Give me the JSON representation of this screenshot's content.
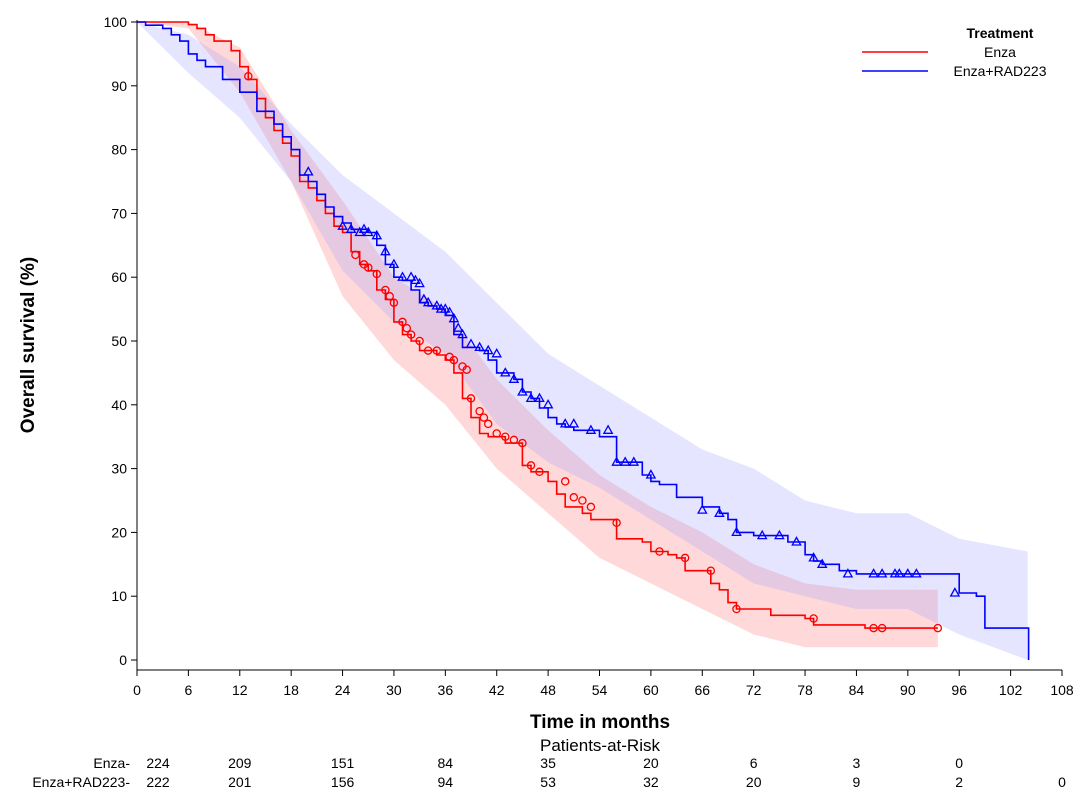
{
  "chart_data": {
    "type": "line",
    "subtype": "kaplan-meier",
    "xlabel": "Time in months",
    "ylabel": "Overall survival (%)",
    "xlim": [
      0,
      108
    ],
    "ylim": [
      0,
      100
    ],
    "xticks": [
      0,
      6,
      12,
      18,
      24,
      30,
      36,
      42,
      48,
      54,
      60,
      66,
      72,
      78,
      84,
      90,
      96,
      102,
      108
    ],
    "yticks": [
      0,
      10,
      20,
      30,
      40,
      50,
      60,
      70,
      80,
      90,
      100
    ],
    "legend": {
      "title": "Treatment",
      "position": "top-right"
    },
    "series": [
      {
        "name": "Enza",
        "color": "#ff0000",
        "band_color": "#ff6666",
        "step": [
          [
            0,
            100
          ],
          [
            5,
            100
          ],
          [
            6,
            99.6
          ],
          [
            7,
            99
          ],
          [
            8,
            98
          ],
          [
            9,
            97
          ],
          [
            11,
            95.5
          ],
          [
            12,
            93
          ],
          [
            13,
            91
          ],
          [
            14,
            88
          ],
          [
            15,
            85
          ],
          [
            16,
            83
          ],
          [
            17,
            81
          ],
          [
            18,
            79
          ],
          [
            19,
            75
          ],
          [
            20,
            74
          ],
          [
            21,
            72
          ],
          [
            22,
            70
          ],
          [
            23,
            68
          ],
          [
            24,
            67
          ],
          [
            25,
            64
          ],
          [
            26,
            62
          ],
          [
            27,
            61
          ],
          [
            28,
            58
          ],
          [
            29,
            56.5
          ],
          [
            30,
            53
          ],
          [
            31,
            51
          ],
          [
            32,
            50
          ],
          [
            33,
            48.5
          ],
          [
            35,
            47.8
          ],
          [
            36,
            47
          ],
          [
            37,
            45
          ],
          [
            38,
            41
          ],
          [
            39,
            38
          ],
          [
            40,
            35.5
          ],
          [
            41,
            35
          ],
          [
            43,
            34
          ],
          [
            45,
            30.5
          ],
          [
            46,
            29.5
          ],
          [
            48,
            28
          ],
          [
            49,
            26
          ],
          [
            50,
            24
          ],
          [
            52,
            23
          ],
          [
            53,
            22
          ],
          [
            54,
            22
          ],
          [
            56,
            19
          ],
          [
            59,
            18.5
          ],
          [
            60,
            17
          ],
          [
            62,
            16.5
          ],
          [
            63,
            16
          ],
          [
            64,
            14
          ],
          [
            67,
            12
          ],
          [
            68,
            11
          ],
          [
            69,
            9
          ],
          [
            70,
            8
          ],
          [
            74,
            7
          ],
          [
            78,
            6.5
          ],
          [
            79,
            5.5
          ],
          [
            84,
            5.5
          ],
          [
            85,
            5
          ],
          [
            93.5,
            5
          ]
        ],
        "ci_upper": [
          [
            0,
            100
          ],
          [
            6,
            100
          ],
          [
            12,
            96
          ],
          [
            18,
            83
          ],
          [
            24,
            72
          ],
          [
            30,
            60
          ],
          [
            36,
            55
          ],
          [
            42,
            44
          ],
          [
            48,
            36
          ],
          [
            54,
            29
          ],
          [
            60,
            24
          ],
          [
            66,
            20
          ],
          [
            72,
            15
          ],
          [
            78,
            12
          ],
          [
            84,
            11
          ],
          [
            90,
            11
          ],
          [
            93.5,
            11
          ]
        ],
        "ci_lower": [
          [
            0,
            100
          ],
          [
            6,
            99
          ],
          [
            12,
            89
          ],
          [
            18,
            75
          ],
          [
            24,
            57
          ],
          [
            30,
            47
          ],
          [
            36,
            40
          ],
          [
            42,
            30
          ],
          [
            48,
            23
          ],
          [
            54,
            16
          ],
          [
            60,
            12
          ],
          [
            66,
            8
          ],
          [
            72,
            4
          ],
          [
            78,
            2
          ],
          [
            84,
            2
          ],
          [
            90,
            2
          ],
          [
            93.5,
            2
          ]
        ],
        "censored": [
          [
            13,
            91.5
          ],
          [
            25.5,
            63.5
          ],
          [
            26.5,
            62
          ],
          [
            27,
            61.5
          ],
          [
            28,
            60.5
          ],
          [
            29,
            58
          ],
          [
            29.5,
            57
          ],
          [
            30,
            56
          ],
          [
            31,
            53
          ],
          [
            31.5,
            52
          ],
          [
            32,
            51
          ],
          [
            33,
            50
          ],
          [
            34,
            48.5
          ],
          [
            35,
            48.5
          ],
          [
            36.5,
            47.5
          ],
          [
            37,
            47
          ],
          [
            38,
            46
          ],
          [
            38.5,
            45.5
          ],
          [
            39,
            41
          ],
          [
            40,
            39
          ],
          [
            40.5,
            38
          ],
          [
            41,
            37
          ],
          [
            42,
            35.5
          ],
          [
            43,
            35
          ],
          [
            44,
            34.5
          ],
          [
            45,
            34
          ],
          [
            46,
            30.5
          ],
          [
            47,
            29.5
          ],
          [
            50,
            28
          ],
          [
            51,
            25.5
          ],
          [
            52,
            25
          ],
          [
            53,
            24
          ],
          [
            56,
            21.5
          ],
          [
            61,
            17
          ],
          [
            64,
            16
          ],
          [
            67,
            14
          ],
          [
            70,
            8
          ],
          [
            79,
            6.5
          ],
          [
            86,
            5
          ],
          [
            87,
            5
          ],
          [
            93.5,
            5
          ]
        ]
      },
      {
        "name": "Enza+RAD223",
        "color": "#0000ff",
        "band_color": "#9999ff",
        "step": [
          [
            0,
            100
          ],
          [
            1,
            99.5
          ],
          [
            3,
            99
          ],
          [
            4,
            98
          ],
          [
            5,
            97
          ],
          [
            6,
            95
          ],
          [
            7,
            94
          ],
          [
            8,
            93
          ],
          [
            10,
            91
          ],
          [
            12,
            89
          ],
          [
            14,
            86
          ],
          [
            16,
            84
          ],
          [
            17,
            82
          ],
          [
            18,
            80
          ],
          [
            19,
            76
          ],
          [
            20,
            75
          ],
          [
            21,
            73
          ],
          [
            22,
            71
          ],
          [
            23,
            69.5
          ],
          [
            24,
            68.5
          ],
          [
            25,
            67.5
          ],
          [
            27,
            67
          ],
          [
            28,
            65
          ],
          [
            29,
            62
          ],
          [
            30,
            60
          ],
          [
            31,
            59.5
          ],
          [
            32,
            58
          ],
          [
            33,
            56
          ],
          [
            34,
            55.5
          ],
          [
            35,
            55
          ],
          [
            36,
            54
          ],
          [
            37,
            51
          ],
          [
            38,
            49
          ],
          [
            40,
            48.5
          ],
          [
            41,
            47
          ],
          [
            42,
            45
          ],
          [
            44,
            44
          ],
          [
            45,
            42
          ],
          [
            46,
            41
          ],
          [
            47,
            39.5
          ],
          [
            48,
            38
          ],
          [
            49,
            37
          ],
          [
            50,
            36.5
          ],
          [
            51,
            36
          ],
          [
            53,
            36
          ],
          [
            54,
            35
          ],
          [
            56,
            31
          ],
          [
            58,
            31
          ],
          [
            59,
            29
          ],
          [
            60,
            28
          ],
          [
            61,
            27.5
          ],
          [
            63,
            25.5
          ],
          [
            64,
            25.5
          ],
          [
            66,
            24
          ],
          [
            68,
            23
          ],
          [
            69,
            22
          ],
          [
            70,
            20
          ],
          [
            72,
            19.5
          ],
          [
            74,
            19.5
          ],
          [
            76,
            18.5
          ],
          [
            78,
            16.5
          ],
          [
            79,
            15.5
          ],
          [
            80,
            15
          ],
          [
            82,
            14
          ],
          [
            84,
            13.5
          ],
          [
            95,
            13.5
          ],
          [
            96,
            10.5
          ],
          [
            98,
            10
          ],
          [
            99,
            5
          ],
          [
            104,
            5
          ],
          [
            104.1,
            0
          ]
        ],
        "ci_upper": [
          [
            0,
            100
          ],
          [
            6,
            98
          ],
          [
            12,
            93
          ],
          [
            18,
            84
          ],
          [
            24,
            76
          ],
          [
            30,
            70
          ],
          [
            36,
            64
          ],
          [
            42,
            56
          ],
          [
            48,
            48
          ],
          [
            54,
            43
          ],
          [
            60,
            38
          ],
          [
            66,
            33
          ],
          [
            72,
            30
          ],
          [
            78,
            25
          ],
          [
            84,
            23
          ],
          [
            90,
            23
          ],
          [
            96,
            19
          ],
          [
            104,
            17
          ]
        ],
        "ci_lower": [
          [
            0,
            100
          ],
          [
            6,
            92
          ],
          [
            12,
            85
          ],
          [
            18,
            75
          ],
          [
            24,
            61
          ],
          [
            30,
            53
          ],
          [
            36,
            48
          ],
          [
            42,
            37
          ],
          [
            48,
            31
          ],
          [
            54,
            27
          ],
          [
            60,
            22
          ],
          [
            66,
            17
          ],
          [
            72,
            12
          ],
          [
            78,
            10
          ],
          [
            84,
            8
          ],
          [
            90,
            8
          ],
          [
            96,
            4
          ],
          [
            104,
            0
          ]
        ],
        "censored": [
          [
            20,
            76.5
          ],
          [
            24,
            68
          ],
          [
            25,
            67.5
          ],
          [
            26,
            67
          ],
          [
            26.5,
            67.5
          ],
          [
            27,
            67
          ],
          [
            28,
            66.5
          ],
          [
            29,
            64
          ],
          [
            30,
            62
          ],
          [
            31,
            60
          ],
          [
            32,
            60
          ],
          [
            32.5,
            59.5
          ],
          [
            33,
            59
          ],
          [
            33.5,
            56.5
          ],
          [
            34,
            56
          ],
          [
            35,
            55.5
          ],
          [
            35.5,
            55
          ],
          [
            36,
            55
          ],
          [
            36.5,
            54.5
          ],
          [
            37,
            53.5
          ],
          [
            37.5,
            52
          ],
          [
            38,
            51
          ],
          [
            39,
            49.5
          ],
          [
            40,
            49
          ],
          [
            41,
            48.5
          ],
          [
            42,
            48
          ],
          [
            43,
            45
          ],
          [
            44,
            44
          ],
          [
            45,
            42
          ],
          [
            46,
            41
          ],
          [
            47,
            41
          ],
          [
            48,
            40
          ],
          [
            50,
            37
          ],
          [
            51,
            37
          ],
          [
            53,
            36
          ],
          [
            55,
            36
          ],
          [
            56,
            31
          ],
          [
            57,
            31
          ],
          [
            58,
            31
          ],
          [
            60,
            29
          ],
          [
            66,
            23.5
          ],
          [
            68,
            23
          ],
          [
            70,
            20
          ],
          [
            73,
            19.5
          ],
          [
            75,
            19.5
          ],
          [
            77,
            18.5
          ],
          [
            79,
            16
          ],
          [
            80,
            15
          ],
          [
            83,
            13.5
          ],
          [
            86,
            13.5
          ],
          [
            87,
            13.5
          ],
          [
            88.5,
            13.5
          ],
          [
            89,
            13.5
          ],
          [
            90,
            13.5
          ],
          [
            91,
            13.5
          ],
          [
            95.5,
            10.5
          ]
        ]
      }
    ]
  },
  "risk_table": {
    "title": "Patients-at-Risk",
    "times": [
      0,
      12,
      24,
      36,
      48,
      60,
      72,
      84,
      96,
      108
    ],
    "rows": [
      {
        "label": "Enza-",
        "counts": [
          "224",
          "209",
          "151",
          "84",
          "35",
          "20",
          "6",
          "3",
          "0",
          ""
        ]
      },
      {
        "label": "Enza+RAD223-",
        "counts": [
          "222",
          "201",
          "156",
          "94",
          "53",
          "32",
          "20",
          "9",
          "2",
          "0"
        ]
      }
    ]
  }
}
